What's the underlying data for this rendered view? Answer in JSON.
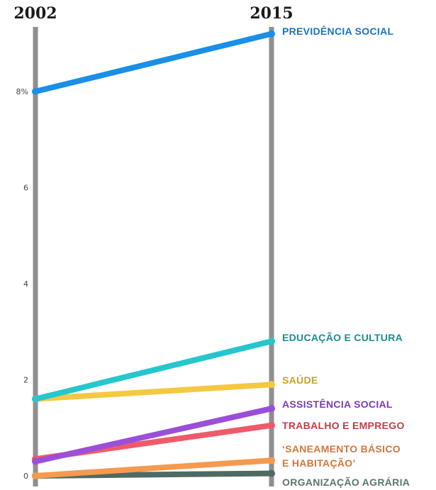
{
  "chart_data": {
    "type": "line",
    "x": [
      "2002",
      "2015"
    ],
    "y_ticks": [
      "8%",
      "6",
      "4",
      "2",
      "0"
    ],
    "y_tick_values": [
      8,
      6,
      4,
      2,
      0
    ],
    "ylim": [
      0,
      9.5
    ],
    "grid": false,
    "legend": "inline labels at right end of each line",
    "series": [
      {
        "name": "PREVIDÊNCIA SOCIAL",
        "values": [
          8.0,
          9.2
        ],
        "color": "#1a8fe8",
        "label_color": "#1a72c2"
      },
      {
        "name": "EDUCAÇÃO E CULTURA",
        "values": [
          1.6,
          2.8
        ],
        "color": "#26c6cf",
        "label_color": "#1a8c96"
      },
      {
        "name": "SAÚDE",
        "values": [
          1.6,
          1.9
        ],
        "color": "#f5c842",
        "label_color": "#c9a227"
      },
      {
        "name": "ASSISTÊNCIA SOCIAL",
        "values": [
          0.3,
          1.4
        ],
        "color": "#9b4fd9",
        "label_color": "#7a3bb3"
      },
      {
        "name": "TRABALHO E EMPREGO",
        "values": [
          0.35,
          1.05
        ],
        "color": "#ef5a6a",
        "label_color": "#c9394a"
      },
      {
        "name": "‘SANEAMENTO BÁSICO E HABITAÇÃO’",
        "label_lines": [
          "‘SANEAMENTO BÁSICO",
          "E HABITAÇÃO’"
        ],
        "values": [
          0.0,
          0.32
        ],
        "color": "#f59a4f",
        "label_color": "#d5763a"
      },
      {
        "name": "ORGANIZAÇÃO AGRÁRIA",
        "values": [
          0.0,
          0.05
        ],
        "color": "#4f6a63",
        "label_color": "#5b7770"
      }
    ]
  }
}
